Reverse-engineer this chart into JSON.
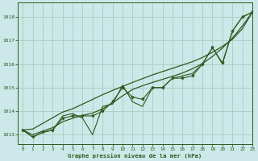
{
  "title": "Graphe pression niveau de la mer (hPa)",
  "background_color": "#cce8e8",
  "line_color": "#2d5a1e",
  "grid_color": "#a0c8b8",
  "xlim": [
    -0.5,
    23
  ],
  "ylim": [
    1012.6,
    1018.6
  ],
  "xticks": [
    0,
    1,
    2,
    3,
    4,
    5,
    6,
    7,
    8,
    9,
    10,
    11,
    12,
    13,
    14,
    15,
    16,
    17,
    18,
    19,
    20,
    21,
    22,
    23
  ],
  "yticks": [
    1013,
    1014,
    1015,
    1016,
    1017,
    1018
  ],
  "series_jagged": [
    1013.2,
    1012.9,
    1013.1,
    1013.2,
    1013.8,
    1013.9,
    1013.7,
    1013.0,
    1014.2,
    1014.3,
    1015.1,
    1014.4,
    1014.2,
    1015.0,
    1015.0,
    1015.4,
    1015.5,
    1015.6,
    1016.0,
    1016.7,
    1016.0,
    1017.4,
    1018.0,
    1018.2
  ],
  "series_smooth1": [
    1013.2,
    1013.0,
    1013.15,
    1013.3,
    1013.55,
    1013.7,
    1013.82,
    1013.92,
    1014.1,
    1014.35,
    1014.65,
    1014.92,
    1015.08,
    1015.22,
    1015.35,
    1015.48,
    1015.62,
    1015.8,
    1016.02,
    1016.32,
    1016.68,
    1017.1,
    1017.62,
    1018.2
  ],
  "series_markers": [
    1013.2,
    1012.9,
    1013.1,
    1013.2,
    1013.7,
    1013.8,
    1013.8,
    1013.8,
    1014.0,
    1014.4,
    1015.0,
    1014.6,
    1014.5,
    1015.0,
    1015.0,
    1015.4,
    1015.4,
    1015.5,
    1016.0,
    1016.7,
    1016.05,
    1017.4,
    1018.0,
    1018.2
  ],
  "series_linear": [
    1013.2,
    1013.24,
    1013.48,
    1013.72,
    1013.96,
    1014.1,
    1014.3,
    1014.5,
    1014.7,
    1014.88,
    1015.05,
    1015.22,
    1015.38,
    1015.54,
    1015.68,
    1015.82,
    1015.96,
    1016.1,
    1016.28,
    1016.5,
    1016.75,
    1017.05,
    1017.5,
    1018.2
  ]
}
